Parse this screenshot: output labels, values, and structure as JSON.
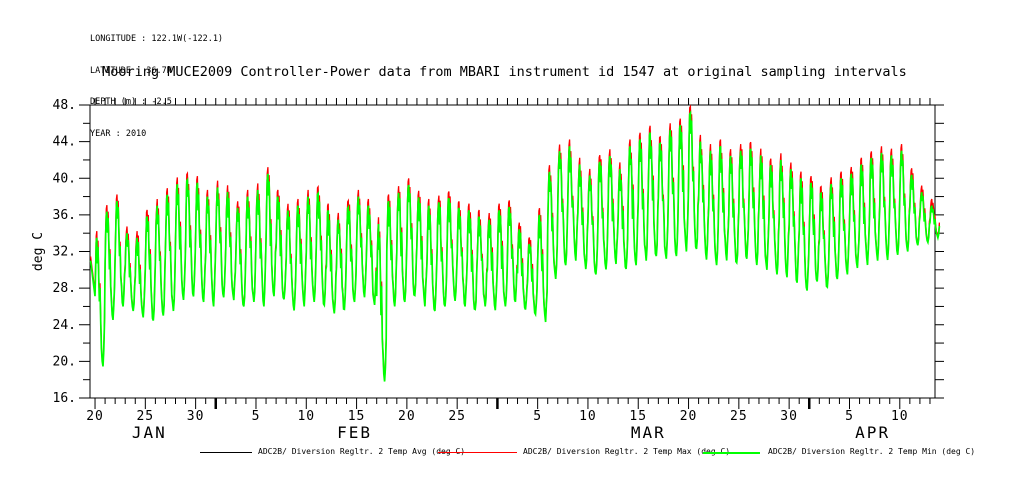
{
  "meta": {
    "lines": [
      "LONGITUDE : 122.1W(-122.1)",
      "LATITUDE : 36.7N",
      "DEPTH (m) : -2.5",
      "YEAR : 2010"
    ]
  },
  "chart_data": {
    "type": "line",
    "title": "Mooring MUCE2009 Controller-Power data from MBARI instrument id 1547 at original sampling intervals",
    "ylabel": "deg C",
    "ylim": [
      16,
      48
    ],
    "y_major_step": 4,
    "y_minor_step": 2,
    "y_tick_labels": [
      "16.",
      "20.",
      "24.",
      "28.",
      "32.",
      "36.",
      "40.",
      "44.",
      "48."
    ],
    "grid": false,
    "legend_position": "bottom",
    "x_axis": {
      "description": "time axis, one minor tick per day; day 0 = Jan 20 2010, last day 83 = Apr 13 2010; bold ticks at month starts",
      "domain_days": [
        -0.5,
        83.5
      ],
      "tick_labels": [
        {
          "day": 0,
          "label": "20"
        },
        {
          "day": 5,
          "label": "25"
        },
        {
          "day": 10,
          "label": "30"
        },
        {
          "day": 16,
          "label": "5"
        },
        {
          "day": 21,
          "label": "10"
        },
        {
          "day": 26,
          "label": "15"
        },
        {
          "day": 31,
          "label": "20"
        },
        {
          "day": 36,
          "label": "25"
        },
        {
          "day": 44,
          "label": "5"
        },
        {
          "day": 49,
          "label": "10"
        },
        {
          "day": 54,
          "label": "15"
        },
        {
          "day": 59,
          "label": "20"
        },
        {
          "day": 64,
          "label": "25"
        },
        {
          "day": 69,
          "label": "30"
        },
        {
          "day": 75,
          "label": "5"
        },
        {
          "day": 80,
          "label": "10"
        }
      ],
      "month_labels": [
        {
          "day": 5.4,
          "label": "JAN"
        },
        {
          "day": 25.8,
          "label": "FEB"
        },
        {
          "day": 55,
          "label": "MAR"
        },
        {
          "day": 77.3,
          "label": "APR"
        }
      ],
      "month_start_days": [
        12,
        40,
        71
      ]
    },
    "series": [
      {
        "key": "avg",
        "name": "ADC2B/ Diversion Regltr. 2 Temp Avg (deg C)",
        "color": "#000000",
        "offset_base": 0.08,
        "offset_peak": 0.3,
        "stroke": 1
      },
      {
        "key": "max",
        "name": "ADC2B/ Diversion Regltr. 2 Temp Max (deg C)",
        "color": "#ff0000",
        "offset_base": 0.18,
        "offset_peak": 0.73,
        "stroke": 1.3
      },
      {
        "key": "min",
        "name": "ADC2B/ Diversion Regltr. 2 Temp Min (deg C)",
        "color": "#00ff00",
        "offset_base": 0.0,
        "offset_peak": 0.0,
        "stroke": 1.7
      }
    ],
    "daily_envelope": {
      "day0_date": "2010-01-20",
      "unit": "deg C",
      "note": "per-day [daily_peak, daily_trough] read from plot; signal oscillates diurnally between these",
      "values": [
        [
          33.5,
          19.3
        ],
        [
          36.5,
          24.5
        ],
        [
          37.5,
          26.0
        ],
        [
          34.0,
          25.5
        ],
        [
          33.5,
          24.8
        ],
        [
          36.0,
          24.3
        ],
        [
          37.0,
          25.0
        ],
        [
          38.5,
          25.5
        ],
        [
          39.5,
          26.5
        ],
        [
          40.0,
          27.0
        ],
        [
          39.5,
          26.5
        ],
        [
          38.0,
          26.0
        ],
        [
          39.0,
          27.0
        ],
        [
          38.5,
          26.5
        ],
        [
          37.0,
          26.0
        ],
        [
          38.0,
          26.5
        ],
        [
          39.0,
          26.0
        ],
        [
          40.5,
          27.0
        ],
        [
          38.0,
          26.5
        ],
        [
          36.5,
          25.5
        ],
        [
          37.0,
          26.0
        ],
        [
          38.0,
          26.5
        ],
        [
          38.5,
          26.0
        ],
        [
          36.5,
          25.0
        ],
        [
          35.5,
          25.5
        ],
        [
          37.0,
          26.5
        ],
        [
          38.0,
          27.0
        ],
        [
          37.0,
          26.0
        ],
        [
          35.0,
          17.8
        ],
        [
          37.5,
          26.0
        ],
        [
          38.5,
          26.5
        ],
        [
          39.5,
          27.0
        ],
        [
          38.0,
          26.0
        ],
        [
          37.0,
          25.5
        ],
        [
          37.5,
          26.0
        ],
        [
          38.0,
          26.5
        ],
        [
          37.0,
          26.0
        ],
        [
          36.5,
          25.5
        ],
        [
          36.0,
          26.0
        ],
        [
          35.5,
          25.5
        ],
        [
          36.5,
          26.0
        ],
        [
          37.0,
          26.5
        ],
        [
          34.5,
          25.5
        ],
        [
          33.0,
          25.0
        ],
        [
          36.0,
          24.3
        ],
        [
          41.0,
          29.0
        ],
        [
          43.0,
          30.5
        ],
        [
          43.5,
          31.0
        ],
        [
          41.5,
          30.0
        ],
        [
          40.5,
          29.5
        ],
        [
          42.0,
          30.0
        ],
        [
          42.5,
          30.5
        ],
        [
          41.0,
          30.0
        ],
        [
          43.5,
          30.5
        ],
        [
          44.5,
          31.0
        ],
        [
          45.0,
          31.5
        ],
        [
          44.0,
          31.0
        ],
        [
          45.5,
          31.5
        ],
        [
          46.0,
          32.0
        ],
        [
          47.3,
          32.0
        ],
        [
          44.0,
          31.0
        ],
        [
          43.0,
          30.5
        ],
        [
          43.5,
          31.0
        ],
        [
          42.5,
          30.5
        ],
        [
          43.0,
          31.0
        ],
        [
          43.5,
          30.5
        ],
        [
          42.5,
          30.0
        ],
        [
          41.5,
          29.5
        ],
        [
          42.0,
          29.0
        ],
        [
          41.0,
          28.5
        ],
        [
          40.0,
          27.5
        ],
        [
          39.5,
          28.5
        ],
        [
          38.5,
          28.0
        ],
        [
          39.5,
          29.0
        ],
        [
          40.0,
          29.5
        ],
        [
          40.5,
          30.0
        ],
        [
          41.5,
          30.5
        ],
        [
          42.5,
          31.0
        ],
        [
          43.0,
          31.0
        ],
        [
          42.5,
          31.5
        ],
        [
          43.0,
          32.0
        ],
        [
          40.5,
          32.5
        ],
        [
          38.5,
          33.0
        ],
        [
          37.0,
          33.5
        ]
      ]
    }
  }
}
